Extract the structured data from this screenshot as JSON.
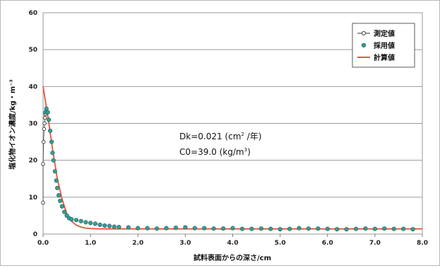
{
  "chart_data": {
    "type": "scatter",
    "xlabel": "試料表面からの深さ/cm",
    "ylabel": "塩化物イオン濃度/kg・m⁻³",
    "xlim": [
      0,
      8
    ],
    "ylim": [
      0,
      60
    ],
    "x_ticks": [
      "0.0",
      "1.0",
      "2.0",
      "3.0",
      "4.0",
      "5.0",
      "6.0",
      "7.0",
      "8.0"
    ],
    "y_ticks": [
      "0",
      "10",
      "20",
      "30",
      "40",
      "50",
      "60"
    ],
    "grid": "horizontal",
    "legend_position": "top-right",
    "legend": [
      "測定値",
      "採用値",
      "計算値"
    ],
    "annotation": {
      "line1_prefix": "Dk=0.021 (cm",
      "line1_sup": "2",
      "line1_suffix": " /年)",
      "line2_prefix": "C0=39.0 (kg/m",
      "line2_sup": "3",
      "line2_suffix": ")"
    },
    "colors": {
      "measured_stroke": "#333333",
      "adopted_fill": "#3a9a92",
      "adopted_stroke": "#1f5e58",
      "calculated": "#e8553a"
    },
    "series": [
      {
        "name": "測定値",
        "x": [
          0.0,
          0.0,
          0.01,
          0.02,
          0.03,
          0.04,
          0.05
        ],
        "y": [
          8.5,
          19.0,
          25.0,
          28.5,
          30.0,
          31.5,
          32.5
        ]
      },
      {
        "name": "採用値",
        "x": [
          0.05,
          0.07,
          0.1,
          0.12,
          0.15,
          0.18,
          0.2,
          0.22,
          0.25,
          0.28,
          0.3,
          0.33,
          0.36,
          0.4,
          0.45,
          0.5,
          0.55,
          0.6,
          0.7,
          0.8,
          0.9,
          1.0,
          1.1,
          1.2,
          1.3,
          1.4,
          1.5,
          1.6,
          1.8,
          2.0,
          2.2,
          2.4,
          2.6,
          2.8,
          3.0,
          3.2,
          3.4,
          3.6,
          3.8,
          4.0,
          4.2,
          4.4,
          4.6,
          4.8,
          5.0,
          5.2,
          5.4,
          5.6,
          5.8,
          6.0,
          6.2,
          6.4,
          6.6,
          6.8,
          7.0,
          7.2,
          7.4,
          7.6,
          7.8
        ],
        "y": [
          33.0,
          34.0,
          33.0,
          31.0,
          28.0,
          25.0,
          22.0,
          20.0,
          17.0,
          14.5,
          12.5,
          10.5,
          9.0,
          7.5,
          6.0,
          5.0,
          4.3,
          4.0,
          3.8,
          3.5,
          3.2,
          3.0,
          2.8,
          2.5,
          2.3,
          2.2,
          2.0,
          1.9,
          1.8,
          1.6,
          1.6,
          1.5,
          1.6,
          1.7,
          1.8,
          1.6,
          1.6,
          1.5,
          1.5,
          1.6,
          1.4,
          1.4,
          1.5,
          1.4,
          1.3,
          1.4,
          1.6,
          1.5,
          1.5,
          1.4,
          1.3,
          1.3,
          1.4,
          1.5,
          1.4,
          1.5,
          1.4,
          1.4,
          1.3
        ]
      },
      {
        "name": "計算値",
        "x": [
          0.0,
          0.1,
          0.2,
          0.3,
          0.4,
          0.5,
          0.6,
          0.7,
          0.8,
          0.9,
          1.0,
          1.2,
          1.4,
          1.6,
          8.0
        ],
        "y": [
          40.0,
          32.0,
          23.0,
          15.0,
          9.5,
          5.5,
          3.5,
          2.4,
          1.9,
          1.6,
          1.5,
          1.4,
          1.4,
          1.4,
          1.4
        ]
      }
    ]
  }
}
